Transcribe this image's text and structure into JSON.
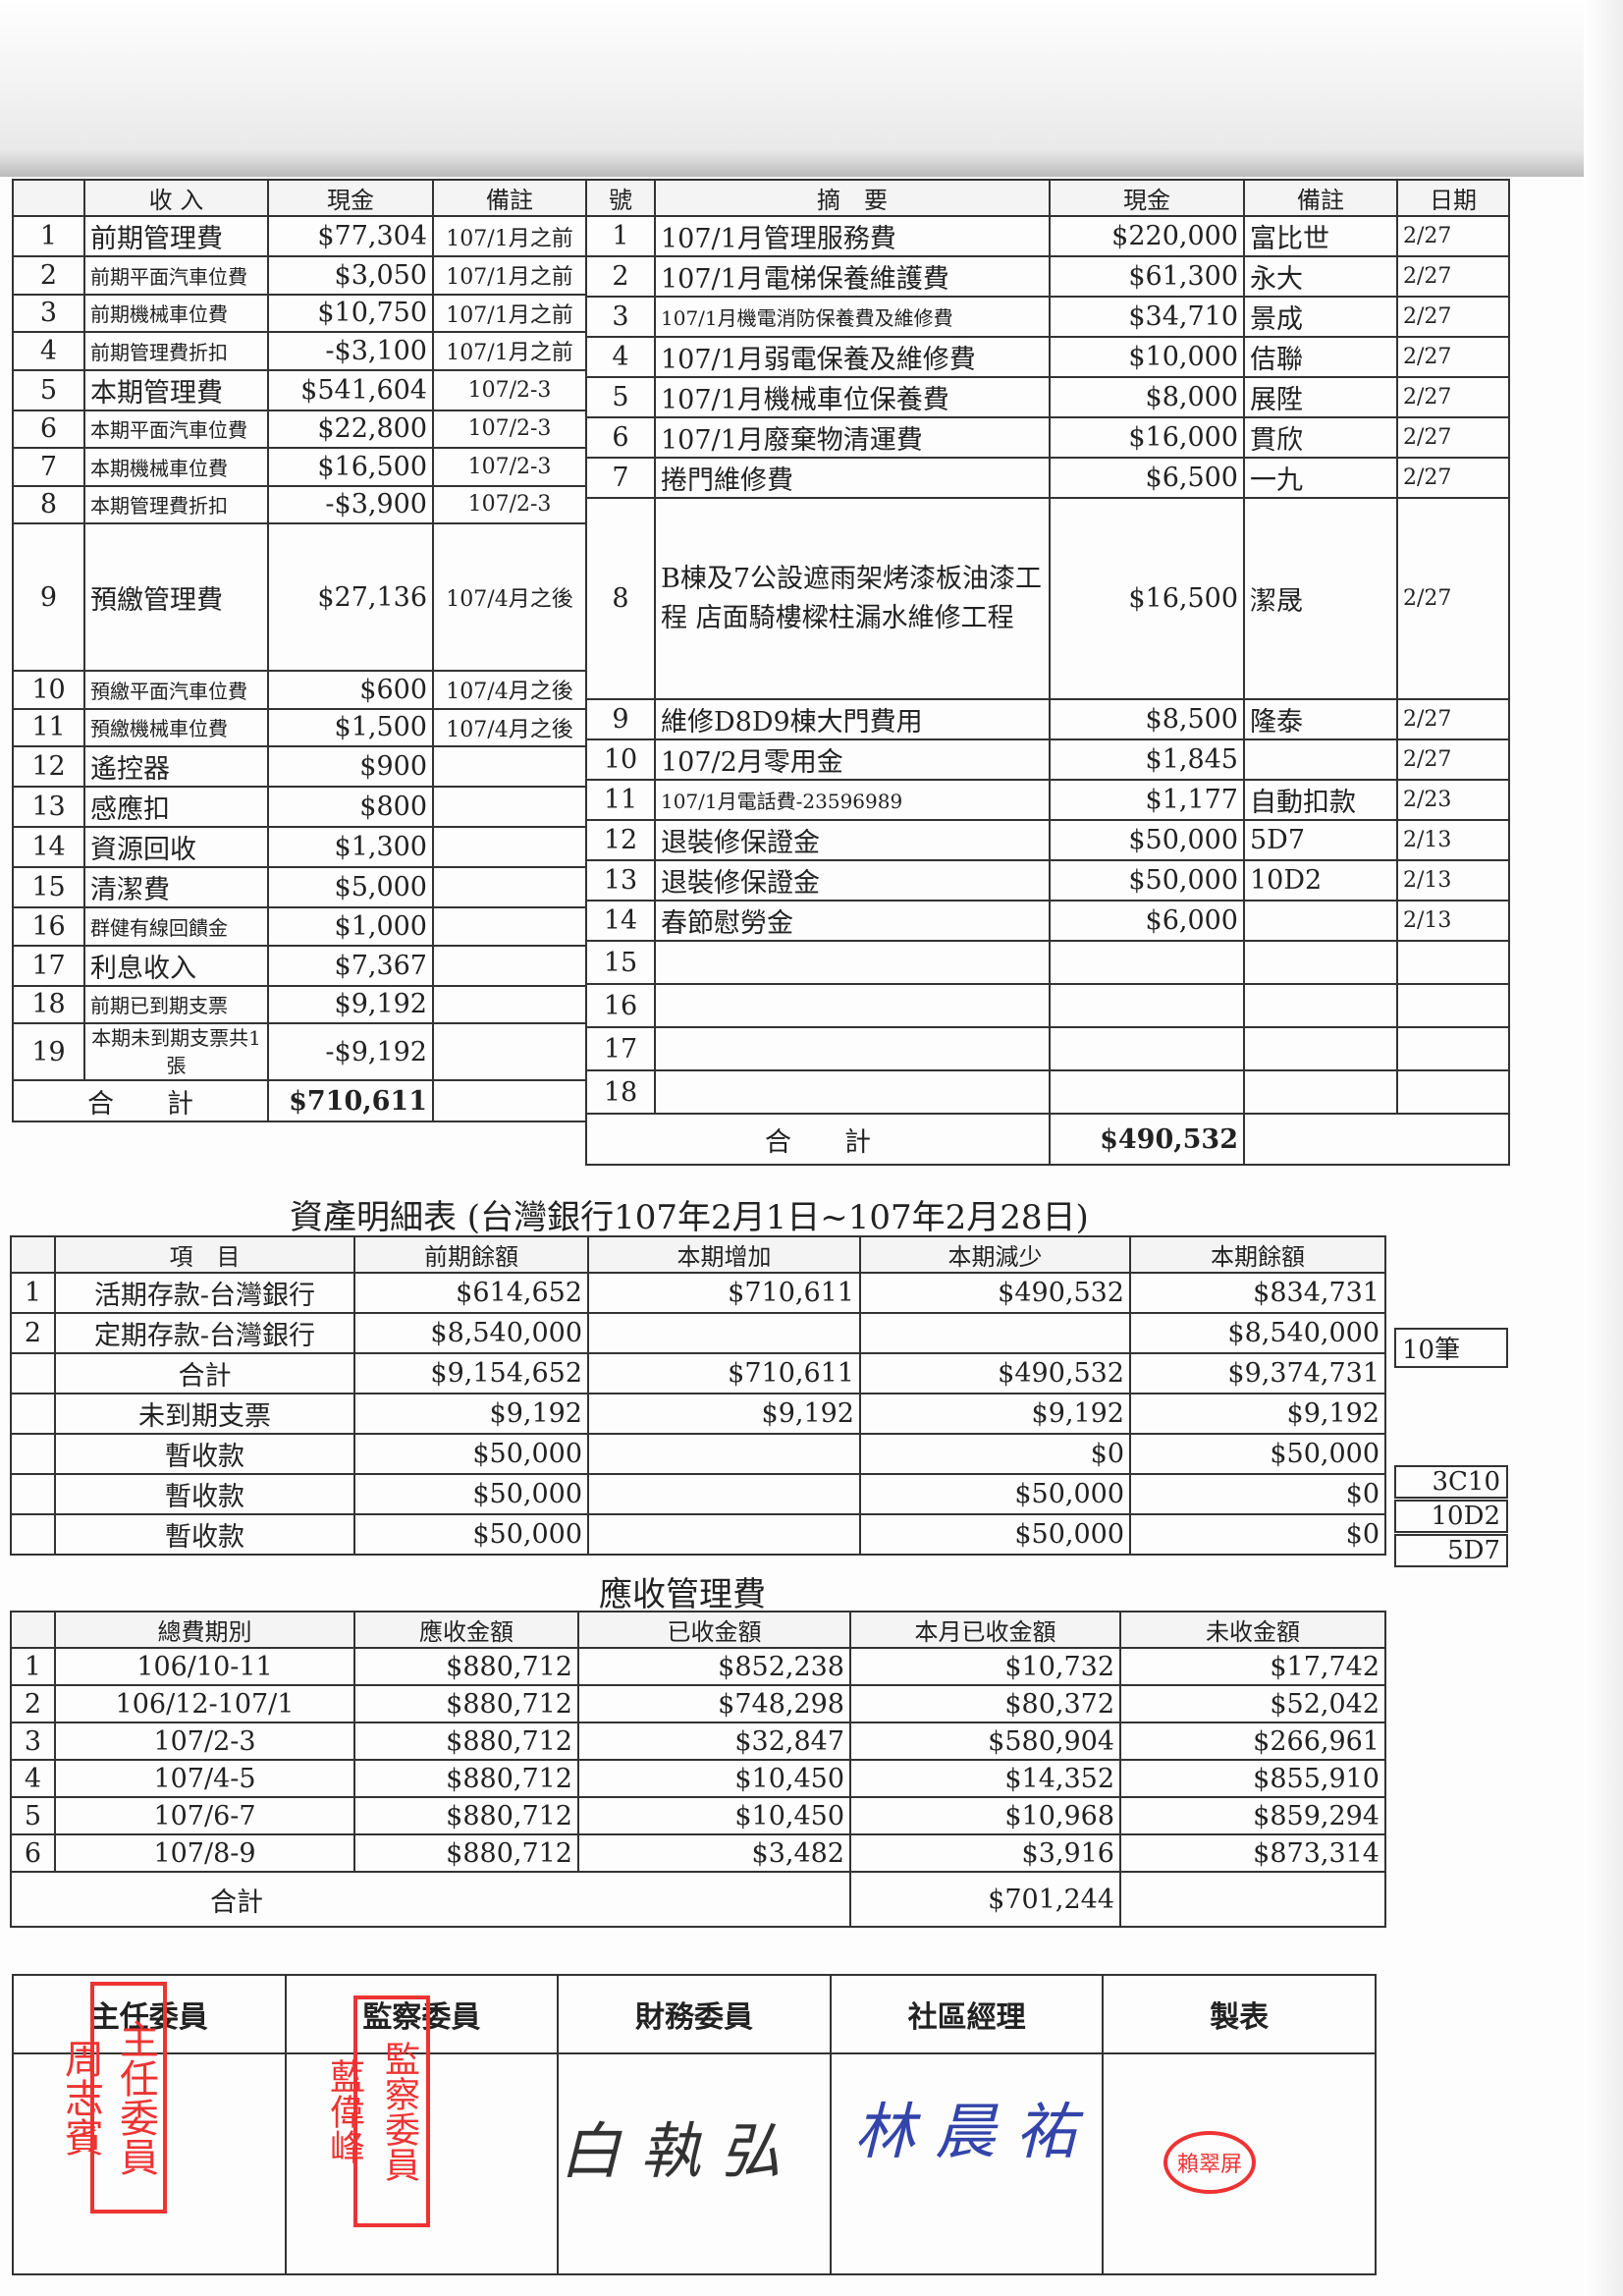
{
  "income": {
    "headers": [
      "",
      "收 入",
      "現金",
      "備註"
    ],
    "rows": [
      [
        "1",
        "前期管理費",
        "$77,304",
        "107/1月之前"
      ],
      [
        "2",
        "前期平面汽車位費",
        "$3,050",
        "107/1月之前"
      ],
      [
        "3",
        "前期機械車位費",
        "$10,750",
        "107/1月之前"
      ],
      [
        "4",
        "前期管理費折扣",
        "-$3,100",
        "107/1月之前"
      ],
      [
        "5",
        "本期管理費",
        "$541,604",
        "107/2-3"
      ],
      [
        "6",
        "本期平面汽車位費",
        "$22,800",
        "107/2-3"
      ],
      [
        "7",
        "本期機械車位費",
        "$16,500",
        "107/2-3"
      ],
      [
        "8",
        "本期管理費折扣",
        "-$3,900",
        "107/2-3"
      ],
      [
        "9",
        "預繳管理費",
        "$27,136",
        "107/4月之後"
      ],
      [
        "10",
        "預繳平面汽車位費",
        "$600",
        "107/4月之後"
      ],
      [
        "11",
        "預繳機械車位費",
        "$1,500",
        "107/4月之後"
      ],
      [
        "12",
        "遙控器",
        "$900",
        ""
      ],
      [
        "13",
        "感應扣",
        "$800",
        ""
      ],
      [
        "14",
        "資源回收",
        "$1,300",
        ""
      ],
      [
        "15",
        "清潔費",
        "$5,000",
        ""
      ],
      [
        "16",
        "群健有線回饋金",
        "$1,000",
        ""
      ],
      [
        "17",
        "利息收入",
        "$7,367",
        ""
      ],
      [
        "18",
        "前期已到期支票",
        "$9,192",
        ""
      ],
      [
        "19",
        "本期未到期支票共1張",
        "-$9,192",
        ""
      ]
    ],
    "total_label": "合　　計",
    "total": "$710,611"
  },
  "expense": {
    "headers": [
      "號",
      "摘　要",
      "現金",
      "備註",
      "日期"
    ],
    "rows": [
      [
        "1",
        "107/1月管理服務費",
        "$220,000",
        "富比世",
        "2/27"
      ],
      [
        "2",
        "107/1月電梯保養維護費",
        "$61,300",
        "永大",
        "2/27"
      ],
      [
        "3",
        "107/1月機電消防保養費及維修費",
        "$34,710",
        "景成",
        "2/27"
      ],
      [
        "4",
        "107/1月弱電保養及維修費",
        "$10,000",
        "佶聯",
        "2/27"
      ],
      [
        "5",
        "107/1月機械車位保養費",
        "$8,000",
        "展陞",
        "2/27"
      ],
      [
        "6",
        "107/1月廢棄物清運費",
        "$16,000",
        "貫欣",
        "2/27"
      ],
      [
        "7",
        "捲門維修費",
        "$6,500",
        "一九",
        "2/27"
      ],
      [
        "8",
        "B棟及7公設遮雨架烤漆板油漆工程 店面騎樓樑柱漏水維修工程",
        "$16,500",
        "潔晟",
        "2/27"
      ],
      [
        "9",
        "維修D8D9棟大門費用",
        "$8,500",
        "隆泰",
        "2/27"
      ],
      [
        "10",
        "107/2月零用金",
        "$1,845",
        "",
        "2/27"
      ],
      [
        "11",
        "107/1月電話費-23596989",
        "$1,177",
        "自動扣款",
        "2/23"
      ],
      [
        "12",
        "退裝修保證金",
        "$50,000",
        "5D7",
        "2/13"
      ],
      [
        "13",
        "退裝修保證金",
        "$50,000",
        "10D2",
        "2/13"
      ],
      [
        "14",
        "春節慰勞金",
        "$6,000",
        "",
        "2/13"
      ],
      [
        "15",
        "",
        "",
        "",
        ""
      ],
      [
        "16",
        "",
        "",
        "",
        ""
      ],
      [
        "17",
        "",
        "",
        "",
        ""
      ],
      [
        "18",
        "",
        "",
        "",
        ""
      ]
    ],
    "total_label": "合　　計",
    "total": "$490,532"
  },
  "assets": {
    "title": "資產明細表 (台灣銀行107年2月1日~107年2月28日)",
    "headers": [
      "",
      "項　目",
      "前期餘額",
      "本期增加",
      "本期減少",
      "本期餘額"
    ],
    "rows": [
      [
        "1",
        "活期存款-台灣銀行",
        "$614,652",
        "$710,611",
        "$490,532",
        "$834,731"
      ],
      [
        "2",
        "定期存款-台灣銀行",
        "$8,540,000",
        "",
        "",
        "$8,540,000"
      ],
      [
        "",
        "合計",
        "$9,154,652",
        "$710,611",
        "$490,532",
        "$9,374,731"
      ],
      [
        "",
        "未到期支票",
        "$9,192",
        "$9,192",
        "$9,192",
        "$9,192"
      ],
      [
        "",
        "暫收款",
        "$50,000",
        "",
        "$0",
        "$50,000"
      ],
      [
        "",
        "暫收款",
        "$50,000",
        "",
        "$50,000",
        "$0"
      ],
      [
        "",
        "暫收款",
        "$50,000",
        "",
        "$50,000",
        "$0"
      ]
    ],
    "side_notes": [
      "10筆",
      "3C10",
      "10D2",
      "5D7"
    ]
  },
  "receivable": {
    "title": "應收管理費",
    "headers": [
      "",
      "總費期別",
      "應收金額",
      "已收金額",
      "本月已收金額",
      "未收金額"
    ],
    "rows": [
      [
        "1",
        "106/10-11",
        "$880,712",
        "$852,238",
        "$10,732",
        "$17,742"
      ],
      [
        "2",
        "106/12-107/1",
        "$880,712",
        "$748,298",
        "$80,372",
        "$52,042"
      ],
      [
        "3",
        "107/2-3",
        "$880,712",
        "$32,847",
        "$580,904",
        "$266,961"
      ],
      [
        "4",
        "107/4-5",
        "$880,712",
        "$10,450",
        "$14,352",
        "$855,910"
      ],
      [
        "5",
        "107/6-7",
        "$880,712",
        "$10,450",
        "$10,968",
        "$859,294"
      ],
      [
        "6",
        "107/8-9",
        "$880,712",
        "$3,482",
        "$3,916",
        "$873,314"
      ]
    ],
    "total_label": "合計",
    "total": "$701,244"
  },
  "signatures": {
    "roles": [
      "主任委員",
      "監察委員",
      "財務委員",
      "社區經理",
      "製表"
    ],
    "stamp_chair": "主任委員周志賓",
    "stamp_supervisor": "監察委員藍偉峰",
    "signature_manager": "林晨祐",
    "stamp_preparer": "賴翠屏",
    "stamp_color": "#e33333",
    "ink_color": "#3344aa"
  }
}
